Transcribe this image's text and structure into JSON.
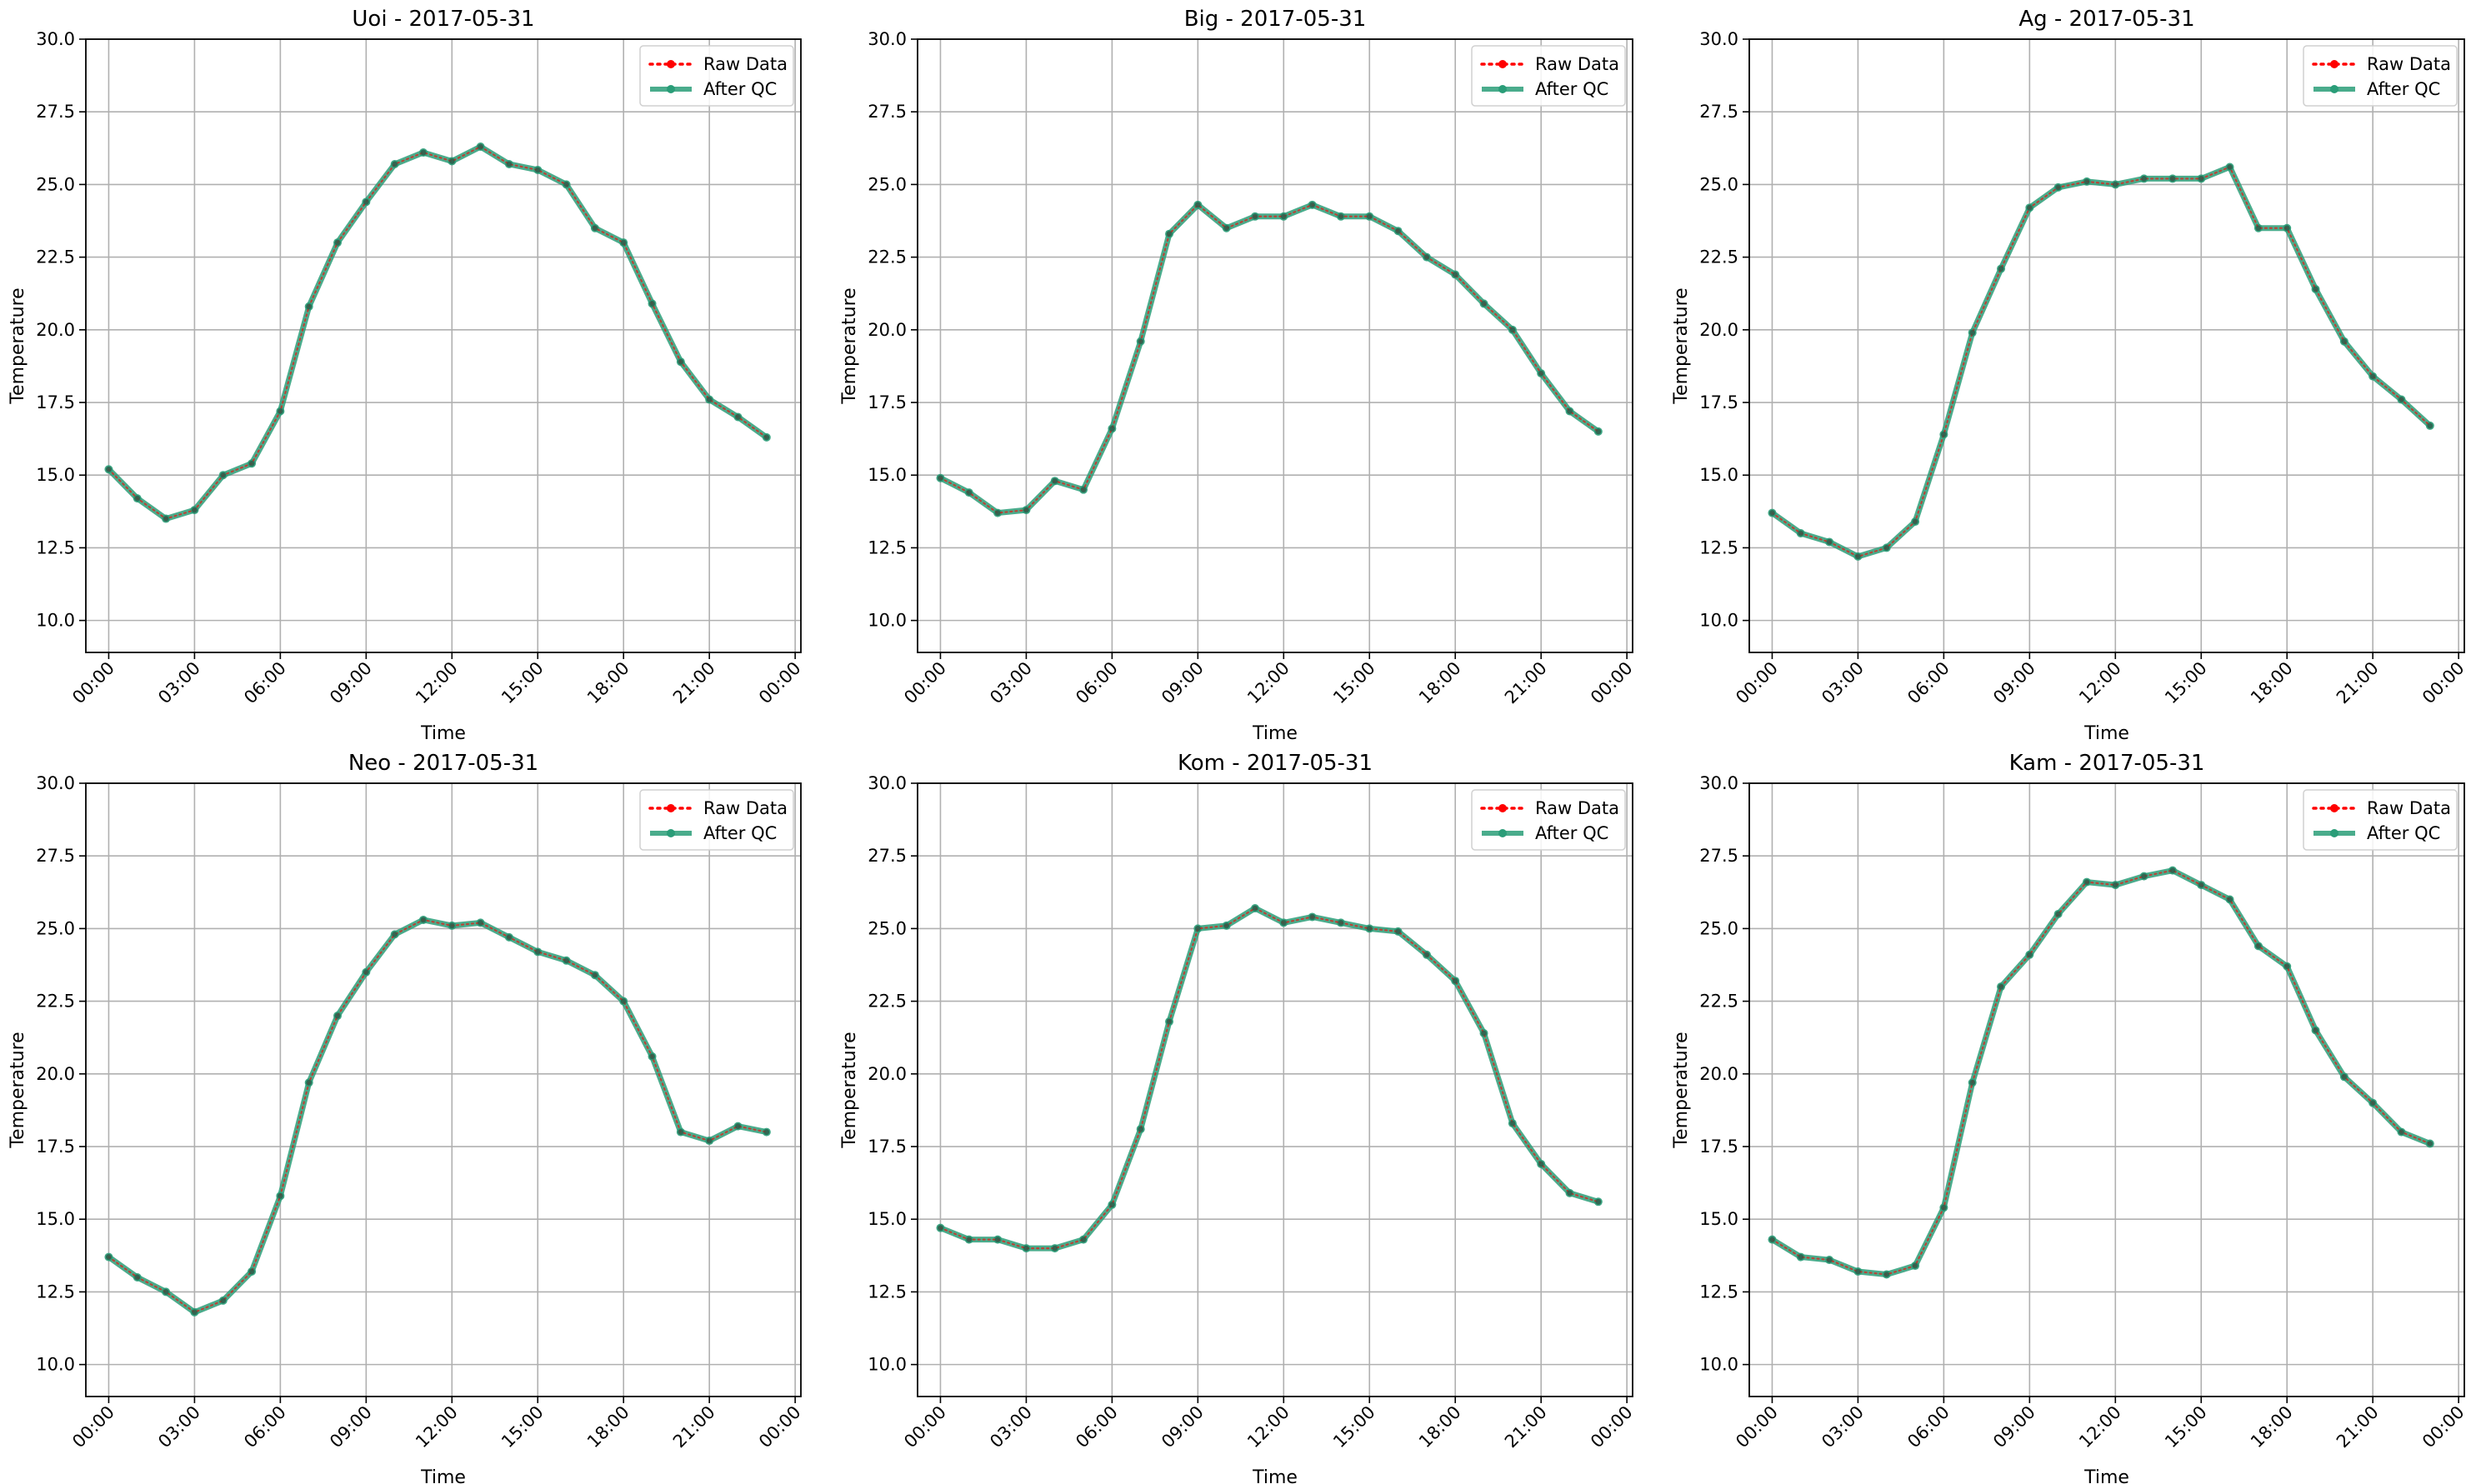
{
  "chart_data": [
    {
      "type": "line",
      "title": "Uoi - 2017-05-31",
      "xlabel": "Time",
      "ylabel": "Temperature",
      "x": [
        "00:00",
        "01:00",
        "02:00",
        "03:00",
        "04:00",
        "05:00",
        "06:00",
        "07:00",
        "08:00",
        "09:00",
        "10:00",
        "11:00",
        "12:00",
        "13:00",
        "14:00",
        "15:00",
        "16:00",
        "17:00",
        "18:00",
        "19:00",
        "20:00",
        "21:00",
        "22:00",
        "23:00"
      ],
      "xticks": [
        "00:00",
        "03:00",
        "06:00",
        "09:00",
        "12:00",
        "15:00",
        "18:00",
        "21:00",
        "00:00"
      ],
      "xlim": [
        -0.8,
        24.2
      ],
      "ylim": [
        8.9,
        30.0
      ],
      "yticks": [
        "10.0",
        "12.5",
        "15.0",
        "17.5",
        "20.0",
        "22.5",
        "25.0",
        "27.5",
        "30.0"
      ],
      "grid": true,
      "legend_position": "top-right",
      "series": [
        {
          "name": "Raw Data",
          "color": "#ff0000",
          "style": "dotted",
          "values": [
            15.2,
            14.2,
            13.5,
            13.8,
            15.0,
            15.4,
            17.2,
            20.8,
            23.0,
            24.4,
            25.7,
            26.1,
            25.8,
            26.3,
            25.7,
            25.5,
            25.0,
            23.5,
            23.0,
            20.9,
            18.9,
            17.6,
            17.0,
            16.3
          ]
        },
        {
          "name": "After QC",
          "color": "#2a9d78",
          "style": "solid",
          "values": [
            15.2,
            14.2,
            13.5,
            13.8,
            15.0,
            15.4,
            17.2,
            20.8,
            23.0,
            24.4,
            25.7,
            26.1,
            25.8,
            26.3,
            25.7,
            25.5,
            25.0,
            23.5,
            23.0,
            20.9,
            18.9,
            17.6,
            17.0,
            16.3
          ]
        }
      ]
    },
    {
      "type": "line",
      "title": "Big - 2017-05-31",
      "xlabel": "Time",
      "ylabel": "Temperature",
      "x": [
        "00:00",
        "01:00",
        "02:00",
        "03:00",
        "04:00",
        "05:00",
        "06:00",
        "07:00",
        "08:00",
        "09:00",
        "10:00",
        "11:00",
        "12:00",
        "13:00",
        "14:00",
        "15:00",
        "16:00",
        "17:00",
        "18:00",
        "19:00",
        "20:00",
        "21:00",
        "22:00",
        "23:00"
      ],
      "xticks": [
        "00:00",
        "03:00",
        "06:00",
        "09:00",
        "12:00",
        "15:00",
        "18:00",
        "21:00",
        "00:00"
      ],
      "xlim": [
        -0.8,
        24.2
      ],
      "ylim": [
        8.9,
        30.0
      ],
      "yticks": [
        "10.0",
        "12.5",
        "15.0",
        "17.5",
        "20.0",
        "22.5",
        "25.0",
        "27.5",
        "30.0"
      ],
      "grid": true,
      "legend_position": "top-right",
      "series": [
        {
          "name": "Raw Data",
          "color": "#ff0000",
          "style": "dotted",
          "values": [
            14.9,
            14.4,
            13.7,
            13.8,
            14.8,
            14.5,
            16.6,
            19.6,
            23.3,
            24.3,
            23.5,
            23.9,
            23.9,
            24.3,
            23.9,
            23.9,
            23.4,
            22.5,
            21.9,
            20.9,
            20.0,
            18.5,
            17.2,
            16.5
          ]
        },
        {
          "name": "After QC",
          "color": "#2a9d78",
          "style": "solid",
          "values": [
            14.9,
            14.4,
            13.7,
            13.8,
            14.8,
            14.5,
            16.6,
            19.6,
            23.3,
            24.3,
            23.5,
            23.9,
            23.9,
            24.3,
            23.9,
            23.9,
            23.4,
            22.5,
            21.9,
            20.9,
            20.0,
            18.5,
            17.2,
            16.5
          ]
        }
      ]
    },
    {
      "type": "line",
      "title": "Ag - 2017-05-31",
      "xlabel": "Time",
      "ylabel": "Temperature",
      "x": [
        "00:00",
        "01:00",
        "02:00",
        "03:00",
        "04:00",
        "05:00",
        "06:00",
        "07:00",
        "08:00",
        "09:00",
        "10:00",
        "11:00",
        "12:00",
        "13:00",
        "14:00",
        "15:00",
        "16:00",
        "17:00",
        "18:00",
        "19:00",
        "20:00",
        "21:00",
        "22:00",
        "23:00"
      ],
      "xticks": [
        "00:00",
        "03:00",
        "06:00",
        "09:00",
        "12:00",
        "15:00",
        "18:00",
        "21:00",
        "00:00"
      ],
      "xlim": [
        -0.8,
        24.2
      ],
      "ylim": [
        8.9,
        30.0
      ],
      "yticks": [
        "10.0",
        "12.5",
        "15.0",
        "17.5",
        "20.0",
        "22.5",
        "25.0",
        "27.5",
        "30.0"
      ],
      "grid": true,
      "legend_position": "top-right",
      "series": [
        {
          "name": "Raw Data",
          "color": "#ff0000",
          "style": "dotted",
          "values": [
            13.7,
            13.0,
            12.7,
            12.2,
            12.5,
            13.4,
            16.4,
            19.9,
            22.1,
            24.2,
            24.9,
            25.1,
            25.0,
            25.2,
            25.2,
            25.2,
            25.6,
            23.5,
            23.5,
            21.4,
            19.6,
            18.4,
            17.6,
            16.7
          ]
        },
        {
          "name": "After QC",
          "color": "#2a9d78",
          "style": "solid",
          "values": [
            13.7,
            13.0,
            12.7,
            12.2,
            12.5,
            13.4,
            16.4,
            19.9,
            22.1,
            24.2,
            24.9,
            25.1,
            25.0,
            25.2,
            25.2,
            25.2,
            25.6,
            23.5,
            23.5,
            21.4,
            19.6,
            18.4,
            17.6,
            16.7
          ]
        }
      ]
    },
    {
      "type": "line",
      "title": "Neo - 2017-05-31",
      "xlabel": "Time",
      "ylabel": "Temperature",
      "x": [
        "00:00",
        "01:00",
        "02:00",
        "03:00",
        "04:00",
        "05:00",
        "06:00",
        "07:00",
        "08:00",
        "09:00",
        "10:00",
        "11:00",
        "12:00",
        "13:00",
        "14:00",
        "15:00",
        "16:00",
        "17:00",
        "18:00",
        "19:00",
        "20:00",
        "21:00",
        "22:00",
        "23:00"
      ],
      "xticks": [
        "00:00",
        "03:00",
        "06:00",
        "09:00",
        "12:00",
        "15:00",
        "18:00",
        "21:00",
        "00:00"
      ],
      "xlim": [
        -0.8,
        24.2
      ],
      "ylim": [
        8.9,
        30.0
      ],
      "yticks": [
        "10.0",
        "12.5",
        "15.0",
        "17.5",
        "20.0",
        "22.5",
        "25.0",
        "27.5",
        "30.0"
      ],
      "grid": true,
      "legend_position": "top-right",
      "series": [
        {
          "name": "Raw Data",
          "color": "#ff0000",
          "style": "dotted",
          "values": [
            13.7,
            13.0,
            12.5,
            11.8,
            12.2,
            13.2,
            15.8,
            19.7,
            22.0,
            23.5,
            24.8,
            25.3,
            25.1,
            25.2,
            24.7,
            24.2,
            23.9,
            23.4,
            22.5,
            20.6,
            18.0,
            17.7,
            18.2,
            18.0
          ]
        },
        {
          "name": "After QC",
          "color": "#2a9d78",
          "style": "solid",
          "values": [
            13.7,
            13.0,
            12.5,
            11.8,
            12.2,
            13.2,
            15.8,
            19.7,
            22.0,
            23.5,
            24.8,
            25.3,
            25.1,
            25.2,
            24.7,
            24.2,
            23.9,
            23.4,
            22.5,
            20.6,
            18.0,
            17.7,
            18.2,
            18.0
          ]
        }
      ]
    },
    {
      "type": "line",
      "title": "Kom - 2017-05-31",
      "xlabel": "Time",
      "ylabel": "Temperature",
      "x": [
        "00:00",
        "01:00",
        "02:00",
        "03:00",
        "04:00",
        "05:00",
        "06:00",
        "07:00",
        "08:00",
        "09:00",
        "10:00",
        "11:00",
        "12:00",
        "13:00",
        "14:00",
        "15:00",
        "16:00",
        "17:00",
        "18:00",
        "19:00",
        "20:00",
        "21:00",
        "22:00",
        "23:00"
      ],
      "xticks": [
        "00:00",
        "03:00",
        "06:00",
        "09:00",
        "12:00",
        "15:00",
        "18:00",
        "21:00",
        "00:00"
      ],
      "xlim": [
        -0.8,
        24.2
      ],
      "ylim": [
        8.9,
        30.0
      ],
      "yticks": [
        "10.0",
        "12.5",
        "15.0",
        "17.5",
        "20.0",
        "22.5",
        "25.0",
        "27.5",
        "30.0"
      ],
      "grid": true,
      "legend_position": "top-right",
      "series": [
        {
          "name": "Raw Data",
          "color": "#ff0000",
          "style": "dotted",
          "values": [
            14.7,
            14.3,
            14.3,
            14.0,
            14.0,
            14.3,
            15.5,
            18.1,
            21.8,
            25.0,
            25.1,
            25.7,
            25.2,
            25.4,
            25.2,
            25.0,
            24.9,
            24.1,
            23.2,
            21.4,
            18.3,
            16.9,
            15.9,
            15.6
          ]
        },
        {
          "name": "After QC",
          "color": "#2a9d78",
          "style": "solid",
          "values": [
            14.7,
            14.3,
            14.3,
            14.0,
            14.0,
            14.3,
            15.5,
            18.1,
            21.8,
            25.0,
            25.1,
            25.7,
            25.2,
            25.4,
            25.2,
            25.0,
            24.9,
            24.1,
            23.2,
            21.4,
            18.3,
            16.9,
            15.9,
            15.6
          ]
        }
      ]
    },
    {
      "type": "line",
      "title": "Kam - 2017-05-31",
      "xlabel": "Time",
      "ylabel": "Temperature",
      "x": [
        "00:00",
        "01:00",
        "02:00",
        "03:00",
        "04:00",
        "05:00",
        "06:00",
        "07:00",
        "08:00",
        "09:00",
        "10:00",
        "11:00",
        "12:00",
        "13:00",
        "14:00",
        "15:00",
        "16:00",
        "17:00",
        "18:00",
        "19:00",
        "20:00",
        "21:00",
        "22:00",
        "23:00"
      ],
      "xticks": [
        "00:00",
        "03:00",
        "06:00",
        "09:00",
        "12:00",
        "15:00",
        "18:00",
        "21:00",
        "00:00"
      ],
      "xlim": [
        -0.8,
        24.2
      ],
      "ylim": [
        8.9,
        30.0
      ],
      "yticks": [
        "10.0",
        "12.5",
        "15.0",
        "17.5",
        "20.0",
        "22.5",
        "25.0",
        "27.5",
        "30.0"
      ],
      "grid": true,
      "legend_position": "top-right",
      "series": [
        {
          "name": "Raw Data",
          "color": "#ff0000",
          "style": "dotted",
          "values": [
            14.3,
            13.7,
            13.6,
            13.2,
            13.1,
            13.4,
            15.4,
            19.7,
            23.0,
            24.1,
            25.5,
            26.6,
            26.5,
            26.8,
            27.0,
            26.5,
            26.0,
            24.4,
            23.7,
            21.5,
            19.9,
            19.0,
            18.0,
            17.6
          ]
        },
        {
          "name": "After QC",
          "color": "#2a9d78",
          "style": "solid",
          "values": [
            14.3,
            13.7,
            13.6,
            13.2,
            13.1,
            13.4,
            15.4,
            19.7,
            23.0,
            24.1,
            25.5,
            26.6,
            26.5,
            26.8,
            27.0,
            26.5,
            26.0,
            24.4,
            23.7,
            21.5,
            19.9,
            19.0,
            18.0,
            17.6
          ]
        }
      ]
    }
  ]
}
